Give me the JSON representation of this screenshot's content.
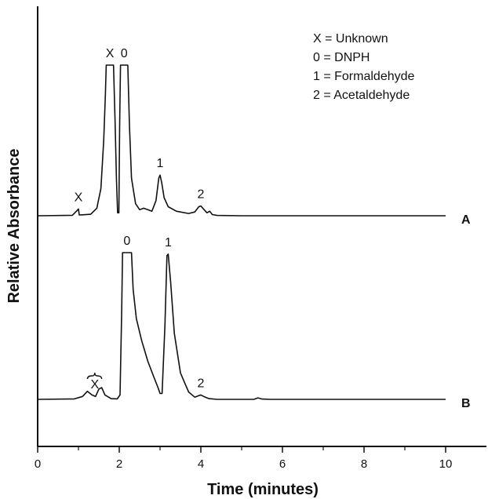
{
  "chart_data": {
    "type": "line",
    "title": "",
    "xlabel": "Time (minutes)",
    "ylabel": "Relative Absorbance",
    "xlim": [
      0,
      11
    ],
    "xticks": [
      0,
      2,
      4,
      6,
      8,
      10
    ],
    "xtick_labels": [
      "0",
      "2",
      "4",
      "6",
      "8",
      "10"
    ],
    "minor_xticks": [
      1,
      3,
      5,
      7,
      9
    ],
    "grid": false,
    "legend": {
      "placement": "top-right",
      "entries": [
        "X = Unknown",
        "0 = DNPH",
        "1 = Formaldehyde",
        "2 = Acetaldehyde"
      ]
    },
    "series": [
      {
        "name": "A",
        "baseline": 0,
        "ylim": [
          0,
          100
        ],
        "points": [
          [
            0,
            0
          ],
          [
            0.85,
            0.3
          ],
          [
            0.95,
            3
          ],
          [
            1.0,
            4.5
          ],
          [
            1.02,
            0.5
          ],
          [
            1.1,
            0.6
          ],
          [
            1.3,
            1
          ],
          [
            1.45,
            5
          ],
          [
            1.55,
            18
          ],
          [
            1.62,
            50
          ],
          [
            1.66,
            80
          ],
          [
            1.68,
            100
          ],
          [
            1.86,
            100
          ],
          [
            1.9,
            60
          ],
          [
            1.93,
            25
          ],
          [
            1.96,
            2
          ],
          [
            1.99,
            2
          ],
          [
            2.01,
            60
          ],
          [
            2.03,
            100
          ],
          [
            2.21,
            100
          ],
          [
            2.25,
            60
          ],
          [
            2.3,
            25
          ],
          [
            2.4,
            8
          ],
          [
            2.5,
            4
          ],
          [
            2.6,
            5
          ],
          [
            2.7,
            4
          ],
          [
            2.8,
            3
          ],
          [
            2.9,
            10
          ],
          [
            2.97,
            25
          ],
          [
            3.0,
            27
          ],
          [
            3.04,
            22
          ],
          [
            3.1,
            12
          ],
          [
            3.2,
            6
          ],
          [
            3.4,
            3
          ],
          [
            3.7,
            1.5
          ],
          [
            3.85,
            2.5
          ],
          [
            3.95,
            6
          ],
          [
            4.0,
            6.5
          ],
          [
            4.08,
            4
          ],
          [
            4.15,
            2
          ],
          [
            4.22,
            3
          ],
          [
            4.28,
            0.8
          ],
          [
            4.4,
            0.2
          ],
          [
            5.0,
            0
          ],
          [
            10.0,
            0
          ]
        ],
        "peaks": [
          {
            "label": "X",
            "x": 1.0
          },
          {
            "label": "X",
            "x": 1.77
          },
          {
            "label": "0",
            "x": 2.12
          },
          {
            "label": "1",
            "x": 3.0
          },
          {
            "label": "2",
            "x": 4.0
          }
        ]
      },
      {
        "name": "B",
        "baseline": 0,
        "ylim": [
          0,
          100
        ],
        "points": [
          [
            0,
            0
          ],
          [
            0.9,
            0.3
          ],
          [
            1.1,
            2
          ],
          [
            1.22,
            5.5
          ],
          [
            1.33,
            3
          ],
          [
            1.42,
            2
          ],
          [
            1.5,
            7
          ],
          [
            1.57,
            8
          ],
          [
            1.65,
            3
          ],
          [
            1.8,
            0.5
          ],
          [
            1.95,
            0.3
          ],
          [
            2.02,
            3
          ],
          [
            2.06,
            60
          ],
          [
            2.08,
            100
          ],
          [
            2.3,
            100
          ],
          [
            2.34,
            75
          ],
          [
            2.42,
            55
          ],
          [
            2.55,
            40
          ],
          [
            2.7,
            26
          ],
          [
            2.85,
            15
          ],
          [
            2.95,
            8
          ],
          [
            3.0,
            4
          ],
          [
            3.05,
            4
          ],
          [
            3.12,
            50
          ],
          [
            3.17,
            98
          ],
          [
            3.2,
            99
          ],
          [
            3.26,
            80
          ],
          [
            3.35,
            45
          ],
          [
            3.5,
            18
          ],
          [
            3.7,
            5
          ],
          [
            3.85,
            1.5
          ],
          [
            3.95,
            2.5
          ],
          [
            4.0,
            3
          ],
          [
            4.08,
            1.8
          ],
          [
            4.2,
            0.5
          ],
          [
            4.4,
            0
          ],
          [
            5.3,
            0
          ],
          [
            5.4,
            1
          ],
          [
            5.5,
            0.2
          ],
          [
            5.7,
            0
          ],
          [
            10.0,
            0
          ]
        ],
        "peaks": [
          {
            "label": "X",
            "x": 1.4
          },
          {
            "label": "0",
            "x": 2.19
          },
          {
            "label": "1",
            "x": 3.2
          },
          {
            "label": "2",
            "x": 4.0
          }
        ]
      }
    ]
  }
}
